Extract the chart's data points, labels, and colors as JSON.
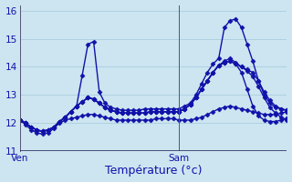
{
  "xlabel": "Température (°c)",
  "xlim": [
    0,
    47
  ],
  "ylim": [
    11,
    16.2
  ],
  "yticks": [
    11,
    12,
    13,
    14,
    15,
    16
  ],
  "xtick_labels": [
    "Ven",
    "Sam"
  ],
  "xtick_positions": [
    0,
    28
  ],
  "vline_x": [
    28
  ],
  "bg_color": "#cce5f0",
  "grid_color": "#aaccdd",
  "line_color": "#1111aa",
  "marker": "D",
  "markersize": 2.5,
  "linewidth": 1.0,
  "series": [
    [
      12.1,
      11.95,
      11.75,
      11.65,
      11.6,
      11.65,
      11.8,
      12.0,
      12.1,
      12.15,
      12.2,
      12.25,
      12.3,
      12.3,
      12.25,
      12.2,
      12.15,
      12.1,
      12.1,
      12.1,
      12.1,
      12.1,
      12.1,
      12.1,
      12.15,
      12.15,
      12.15,
      12.15,
      12.1,
      12.1,
      12.1,
      12.15,
      12.2,
      12.3,
      12.4,
      12.5,
      12.55,
      12.6,
      12.55,
      12.5,
      12.45,
      12.4,
      12.35,
      12.3,
      12.3,
      12.3,
      12.35,
      12.4
    ],
    [
      12.1,
      12.0,
      11.85,
      11.75,
      11.7,
      11.75,
      11.85,
      12.05,
      12.2,
      12.4,
      12.6,
      13.7,
      14.8,
      14.9,
      13.1,
      12.7,
      12.55,
      12.5,
      12.45,
      12.45,
      12.45,
      12.45,
      12.5,
      12.5,
      12.5,
      12.5,
      12.5,
      12.5,
      12.5,
      12.6,
      12.7,
      13.0,
      13.4,
      13.8,
      14.1,
      14.3,
      15.4,
      15.65,
      15.7,
      15.4,
      14.8,
      14.2,
      13.5,
      13.0,
      12.7,
      12.55,
      12.5,
      12.45
    ],
    [
      12.1,
      12.0,
      11.85,
      11.75,
      11.7,
      11.75,
      11.85,
      12.05,
      12.2,
      12.4,
      12.6,
      12.75,
      12.9,
      12.85,
      12.7,
      12.55,
      12.45,
      12.4,
      12.35,
      12.35,
      12.35,
      12.35,
      12.35,
      12.4,
      12.4,
      12.4,
      12.4,
      12.4,
      12.4,
      12.5,
      12.65,
      12.9,
      13.2,
      13.5,
      13.8,
      14.05,
      14.15,
      14.2,
      14.1,
      13.8,
      13.2,
      12.6,
      12.25,
      12.1,
      12.05,
      12.05,
      12.1,
      12.15
    ],
    [
      12.1,
      12.0,
      11.85,
      11.75,
      11.7,
      11.75,
      11.85,
      12.05,
      12.2,
      12.4,
      12.6,
      12.75,
      12.9,
      12.85,
      12.7,
      12.55,
      12.45,
      12.4,
      12.35,
      12.35,
      12.35,
      12.35,
      12.35,
      12.4,
      12.4,
      12.4,
      12.4,
      12.4,
      12.4,
      12.5,
      12.65,
      12.9,
      13.2,
      13.5,
      13.8,
      14.05,
      14.15,
      14.2,
      14.1,
      14.0,
      13.9,
      13.8,
      13.5,
      13.1,
      12.8,
      12.6,
      12.5,
      12.45
    ],
    [
      12.1,
      12.0,
      11.85,
      11.75,
      11.7,
      11.75,
      11.85,
      12.05,
      12.2,
      12.4,
      12.6,
      12.75,
      12.9,
      12.85,
      12.7,
      12.55,
      12.45,
      12.4,
      12.35,
      12.35,
      12.35,
      12.35,
      12.35,
      12.4,
      12.4,
      12.4,
      12.4,
      12.4,
      12.4,
      12.5,
      12.65,
      12.9,
      13.2,
      13.5,
      13.8,
      14.05,
      14.2,
      14.3,
      14.15,
      14.0,
      13.85,
      13.65,
      13.3,
      12.9,
      12.55,
      12.35,
      12.2,
      12.1
    ]
  ]
}
